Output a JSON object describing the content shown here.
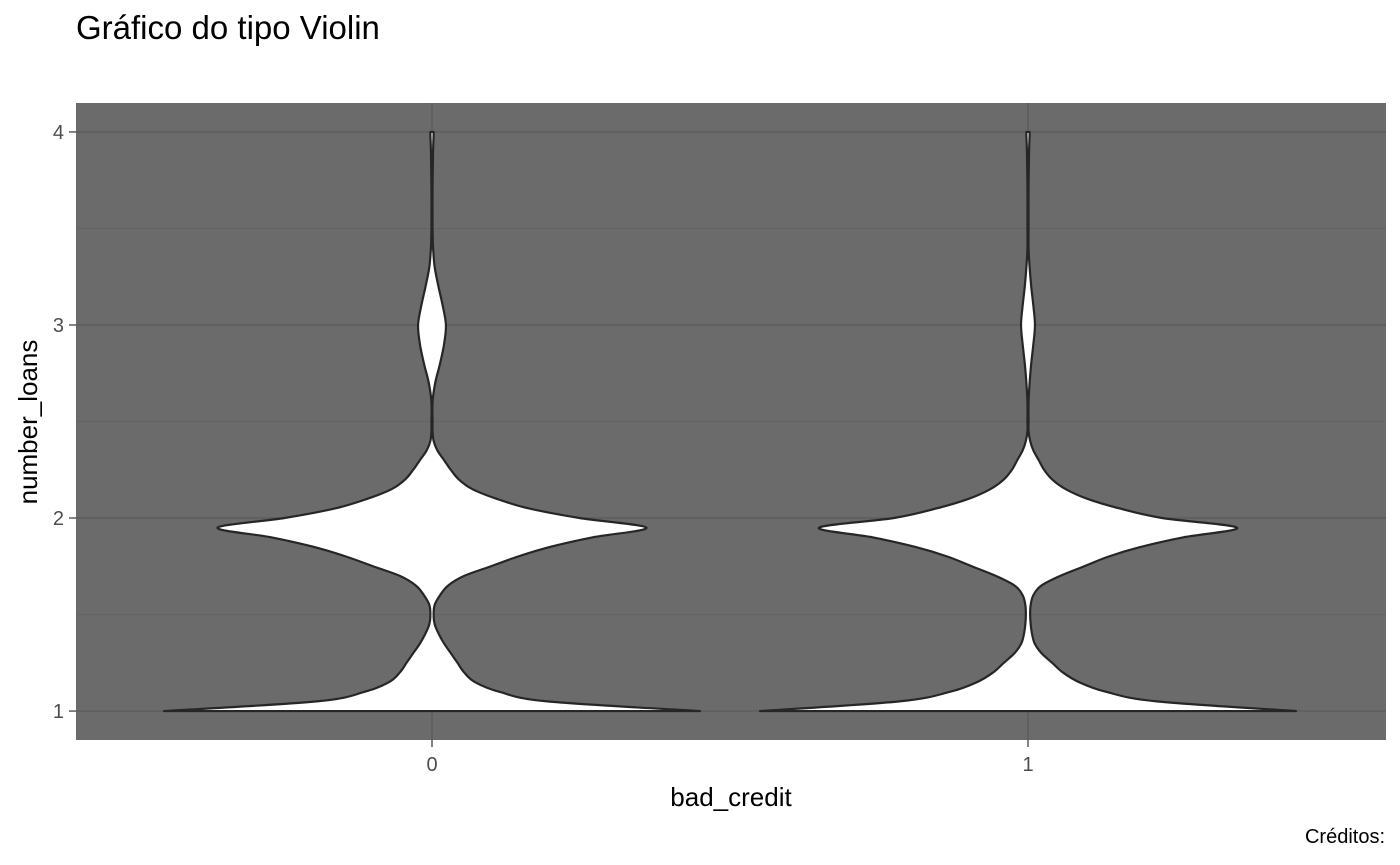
{
  "chart_data": {
    "type": "violin",
    "title": "Gráfico do tipo Violin",
    "xlabel": "bad_credit",
    "ylabel": "number_loans",
    "caption": "Créditos:",
    "categories": [
      "0",
      "1"
    ],
    "ylim": [
      0.85,
      4.15
    ],
    "y_ticks": [
      1,
      2,
      3,
      4
    ],
    "grid": true,
    "panel_background": "#6b6b6b",
    "grid_major_color": "#5a5a5a",
    "grid_minor_color": "#636363",
    "violin_fill": "#ffffff",
    "violin_outline": "#262626",
    "violins": [
      {
        "category": "0",
        "density_profile": [
          [
            1.0,
            1.0
          ],
          [
            1.05,
            0.43
          ],
          [
            1.1,
            0.25
          ],
          [
            1.15,
            0.16
          ],
          [
            1.2,
            0.12
          ],
          [
            1.25,
            0.095
          ],
          [
            1.3,
            0.07
          ],
          [
            1.35,
            0.045
          ],
          [
            1.4,
            0.025
          ],
          [
            1.45,
            0.01
          ],
          [
            1.5,
            0.006
          ],
          [
            1.55,
            0.01
          ],
          [
            1.6,
            0.03
          ],
          [
            1.65,
            0.06
          ],
          [
            1.7,
            0.12
          ],
          [
            1.75,
            0.22
          ],
          [
            1.8,
            0.32
          ],
          [
            1.85,
            0.44
          ],
          [
            1.9,
            0.6
          ],
          [
            1.95,
            0.8
          ],
          [
            2.0,
            0.55
          ],
          [
            2.05,
            0.36
          ],
          [
            2.1,
            0.24
          ],
          [
            2.15,
            0.15
          ],
          [
            2.2,
            0.1
          ],
          [
            2.25,
            0.07
          ],
          [
            2.3,
            0.045
          ],
          [
            2.35,
            0.02
          ],
          [
            2.4,
            0.006
          ],
          [
            2.45,
            0.002
          ],
          [
            2.5,
            0.002
          ],
          [
            2.6,
            0.002
          ],
          [
            2.7,
            0.012
          ],
          [
            2.8,
            0.03
          ],
          [
            2.9,
            0.045
          ],
          [
            3.0,
            0.052
          ],
          [
            3.1,
            0.04
          ],
          [
            3.2,
            0.024
          ],
          [
            3.3,
            0.01
          ],
          [
            3.4,
            0.004
          ],
          [
            3.5,
            0.002
          ],
          [
            3.7,
            0.002
          ],
          [
            3.9,
            0.004
          ],
          [
            3.98,
            0.006
          ],
          [
            4.0,
            0.006
          ]
        ]
      },
      {
        "category": "1",
        "density_profile": [
          [
            1.0,
            1.0
          ],
          [
            1.05,
            0.48
          ],
          [
            1.1,
            0.29
          ],
          [
            1.15,
            0.19
          ],
          [
            1.2,
            0.13
          ],
          [
            1.25,
            0.09
          ],
          [
            1.3,
            0.05
          ],
          [
            1.35,
            0.025
          ],
          [
            1.4,
            0.015
          ],
          [
            1.45,
            0.01
          ],
          [
            1.5,
            0.008
          ],
          [
            1.55,
            0.01
          ],
          [
            1.6,
            0.02
          ],
          [
            1.65,
            0.05
          ],
          [
            1.7,
            0.12
          ],
          [
            1.75,
            0.21
          ],
          [
            1.8,
            0.3
          ],
          [
            1.85,
            0.42
          ],
          [
            1.9,
            0.58
          ],
          [
            1.95,
            0.78
          ],
          [
            2.0,
            0.5
          ],
          [
            2.05,
            0.34
          ],
          [
            2.1,
            0.22
          ],
          [
            2.15,
            0.14
          ],
          [
            2.2,
            0.09
          ],
          [
            2.25,
            0.06
          ],
          [
            2.3,
            0.04
          ],
          [
            2.35,
            0.02
          ],
          [
            2.4,
            0.008
          ],
          [
            2.45,
            0.002
          ],
          [
            2.5,
            0.002
          ],
          [
            2.6,
            0.002
          ],
          [
            2.7,
            0.006
          ],
          [
            2.8,
            0.012
          ],
          [
            2.9,
            0.02
          ],
          [
            3.0,
            0.026
          ],
          [
            3.1,
            0.02
          ],
          [
            3.2,
            0.012
          ],
          [
            3.3,
            0.006
          ],
          [
            3.4,
            0.002
          ],
          [
            3.5,
            0.002
          ],
          [
            3.7,
            0.002
          ],
          [
            3.9,
            0.004
          ],
          [
            3.98,
            0.006
          ],
          [
            4.0,
            0.006
          ]
        ]
      }
    ]
  }
}
